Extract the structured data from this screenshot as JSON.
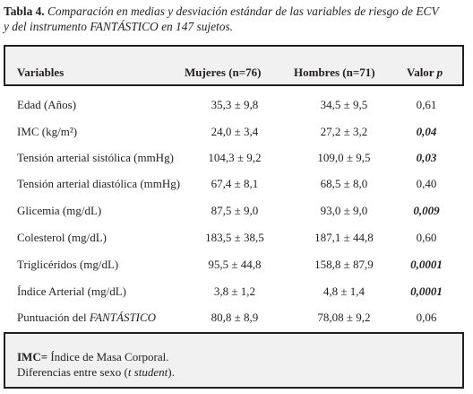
{
  "caption": {
    "label": "Tabla 4.",
    "line1": " Comparación en medias y desviación estándar de las variables de riesgo de ECV",
    "line2": "y del instrumento FANTÁSTICO en 147 sujetos."
  },
  "table": {
    "headers": {
      "variable": "Variables",
      "mujeres": "Mujeres (n=76)",
      "hombres": "Hombres (n=71)",
      "p_prefix": "Valor ",
      "p_symbol": "p"
    },
    "rows": [
      {
        "variable": "Edad (Años)",
        "mujeres": "35,3 ± 9,8",
        "hombres": "34,5 ± 9,5",
        "p": "0,61",
        "significant": false
      },
      {
        "variable": "IMC (kg/m²)",
        "mujeres": "24,0 ± 3,4",
        "hombres": "27,2 ± 3,2",
        "p": "0,04",
        "significant": true
      },
      {
        "variable": "Tensión arterial sistólica (mmHg)",
        "mujeres": "104,3 ± 9,2",
        "hombres": "109,0 ± 9,5",
        "p": "0,03",
        "significant": true
      },
      {
        "variable": "Tensión arterial diastólica (mmHg)",
        "mujeres": "67,4 ± 8,1",
        "hombres": "68,5 ± 8,0",
        "p": "0,40",
        "significant": false
      },
      {
        "variable": "Glicemia (mg/dL)",
        "mujeres": "87,5 ± 9,0",
        "hombres": "93,0 ± 9,0",
        "p": "0,009",
        "significant": true
      },
      {
        "variable": "Colesterol (mg/dL)",
        "mujeres": "183,5 ± 38,5",
        "hombres": "187,1 ± 44,8",
        "p": "0,60",
        "significant": false
      },
      {
        "variable": "Triglicéridos (mg/dL)",
        "mujeres": "95,5 ± 44,8",
        "hombres": "158,8 ± 87,9",
        "p": "0,0001",
        "significant": true
      },
      {
        "variable": "Índice Arterial (mg/dL)",
        "mujeres": "3,8 ± 1,2",
        "hombres": "4,8 ± 1,4",
        "p": "0,0001",
        "significant": true
      },
      {
        "variable": "Puntuación del ",
        "variable_italic": "FANTÁSTICO",
        "mujeres": "80,8 ± 8,9",
        "hombres": "78,08 ± 9,2",
        "p": "0,06",
        "significant": false
      }
    ]
  },
  "footer": {
    "abbr": "IMC=",
    "abbr_text": " Índice de Masa Corporal.",
    "line2_prefix": "Diferencias entre sexo (",
    "line2_italic": "t student",
    "line2_suffix": ")."
  }
}
